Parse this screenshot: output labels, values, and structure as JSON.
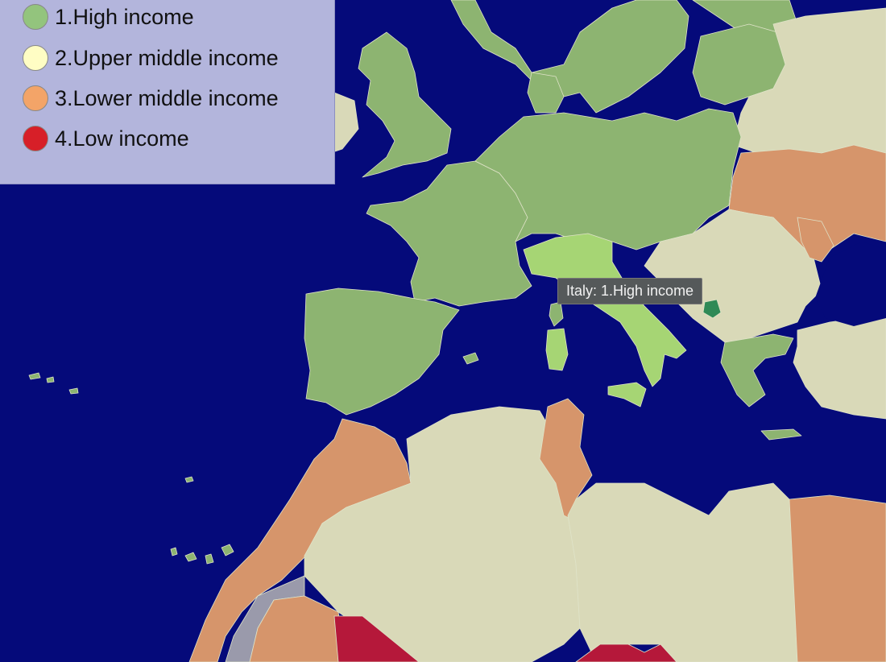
{
  "legend": {
    "items": [
      {
        "label": "1.High income",
        "color": "#93c47d"
      },
      {
        "label": "2.Upper middle income",
        "color": "#fffdc4"
      },
      {
        "label": "3.Lower middle income",
        "color": "#f3a468"
      },
      {
        "label": "4.Low income",
        "color": "#d71f28"
      }
    ]
  },
  "tooltip": {
    "text": "Italy: 1.High income"
  },
  "map_colors": {
    "ocean": "#050a7a",
    "high_income": "#8db471",
    "upper_middle_income": "#d9d9b8",
    "lower_middle_income": "#d6956b",
    "low_income": "#b5183a",
    "no_data": "#9a9aab",
    "highlighted_country": "#a6d574",
    "kosovo_highlight": "#2f8a56"
  }
}
